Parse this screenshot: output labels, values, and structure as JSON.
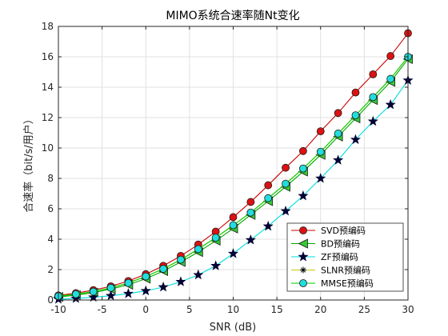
{
  "chart_data": {
    "type": "line",
    "title": "MIMO系统合速率随Nt变化",
    "xlabel": "SNR (dB)",
    "ylabel": "合速率（bit/s/用户）",
    "xlim": [
      -10,
      30
    ],
    "ylim": [
      0,
      18
    ],
    "xticks": [
      -10,
      -5,
      0,
      5,
      10,
      15,
      20,
      25,
      30
    ],
    "yticks": [
      0,
      2,
      4,
      6,
      8,
      10,
      12,
      14,
      16,
      18
    ],
    "grid": true,
    "legend_position": "bottom-right",
    "x": [
      -10,
      -8,
      -6,
      -4,
      -2,
      0,
      2,
      4,
      6,
      8,
      10,
      12,
      14,
      16,
      18,
      20,
      22,
      24,
      26,
      28,
      30
    ],
    "series": [
      {
        "name": "SVD预编码",
        "color": "#cc0000",
        "marker": "circle",
        "marker_fill": "#dd1111",
        "values": [
          0.3,
          0.45,
          0.65,
          0.9,
          1.25,
          1.7,
          2.25,
          2.9,
          3.65,
          4.5,
          5.45,
          6.45,
          7.55,
          8.7,
          9.8,
          11.1,
          12.3,
          13.65,
          14.85,
          16.05,
          17.55
        ]
      },
      {
        "name": "BD预编码",
        "color": "#00aa00",
        "marker": "triangle-left",
        "marker_fill": "#33cc33",
        "values": [
          0.2,
          0.32,
          0.48,
          0.72,
          1.0,
          1.4,
          1.9,
          2.5,
          3.15,
          3.9,
          4.7,
          5.6,
          6.5,
          7.45,
          8.45,
          9.55,
          10.75,
          11.95,
          13.15,
          14.35,
          15.85
        ]
      },
      {
        "name": "ZF预编码",
        "color": "#00dddd",
        "marker": "star",
        "marker_fill": "#000033",
        "values": [
          0.05,
          0.1,
          0.18,
          0.28,
          0.42,
          0.6,
          0.85,
          1.2,
          1.65,
          2.25,
          3.05,
          3.95,
          4.85,
          5.85,
          6.85,
          8.0,
          9.2,
          10.55,
          11.75,
          12.85,
          14.45
        ]
      },
      {
        "name": "SLNR预编码",
        "color": "#cccc00",
        "marker": "asterisk",
        "marker_fill": "#000000",
        "values": [
          0.25,
          0.38,
          0.55,
          0.8,
          1.12,
          1.55,
          2.05,
          2.65,
          3.35,
          4.1,
          4.92,
          5.75,
          6.7,
          7.65,
          8.65,
          9.75,
          10.95,
          12.15,
          13.35,
          14.55,
          16.0
        ]
      },
      {
        "name": "MMSE预编码",
        "color": "#00cc00",
        "marker": "circle",
        "marker_fill": "#22dddd",
        "values": [
          0.25,
          0.38,
          0.55,
          0.8,
          1.12,
          1.55,
          2.05,
          2.65,
          3.35,
          4.1,
          4.92,
          5.75,
          6.7,
          7.65,
          8.65,
          9.75,
          10.95,
          12.15,
          13.35,
          14.55,
          16.0
        ]
      }
    ]
  }
}
